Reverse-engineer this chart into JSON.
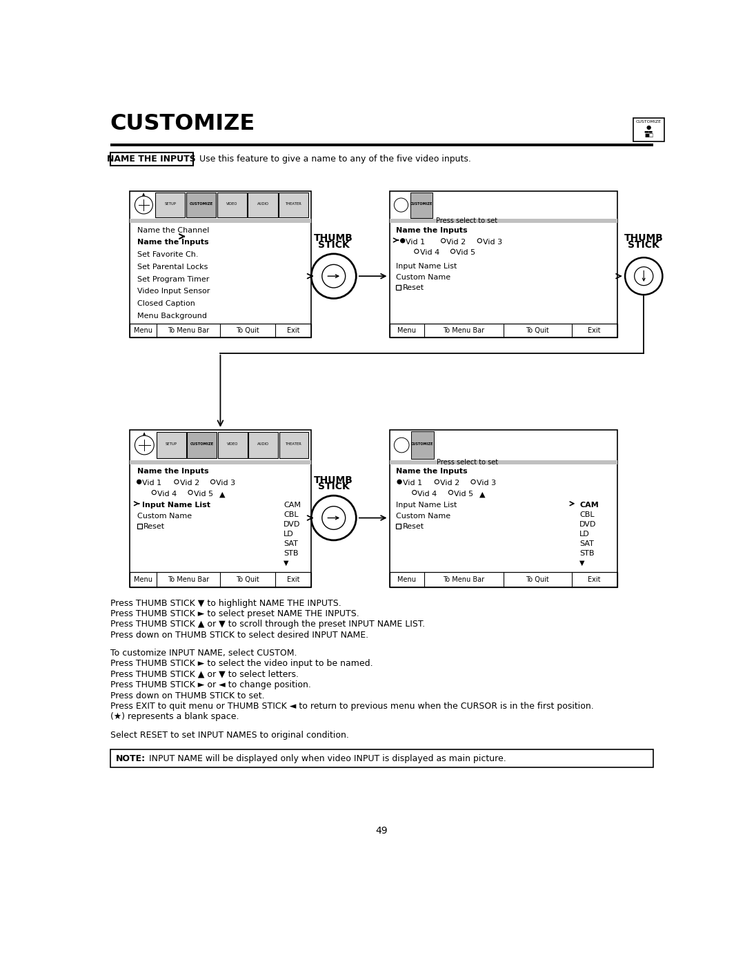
{
  "title": "CUSTOMIZE",
  "page_number": "49",
  "header_text": "NAME THE INPUTS",
  "header_desc": "Use this feature to give a name to any of the five video inputs.",
  "bg_color": "#ffffff",
  "text_color": "#000000",
  "instructions_para1": [
    "Press THUMB STICK ▼ to highlight NAME THE INPUTS.",
    "Press THUMB STICK ► to select preset NAME THE INPUTS.",
    "Press THUMB STICK ▲ or ▼ to scroll through the preset INPUT NAME LIST.",
    "Press down on THUMB STICK to select desired INPUT NAME."
  ],
  "instructions_para2": [
    "To customize INPUT NAME, select CUSTOM.",
    "Press THUMB STICK ► to select the video input to be named.",
    "Press THUMB STICK ▲ or ▼ to select letters.",
    "Press THUMB STICK ► or ◄ to change position.",
    "Press down on THUMB STICK to set.",
    "Press EXIT to quit menu or THUMB STICK ◄ to return to previous menu when the CURSOR is in the first position.",
    "(★) represents a blank space."
  ],
  "select_reset_text": "Select RESET to set INPUT NAMES to original condition.",
  "note_label": "NOTE:",
  "note_body": "INPUT NAME will be displayed only when video INPUT is displayed as main picture."
}
